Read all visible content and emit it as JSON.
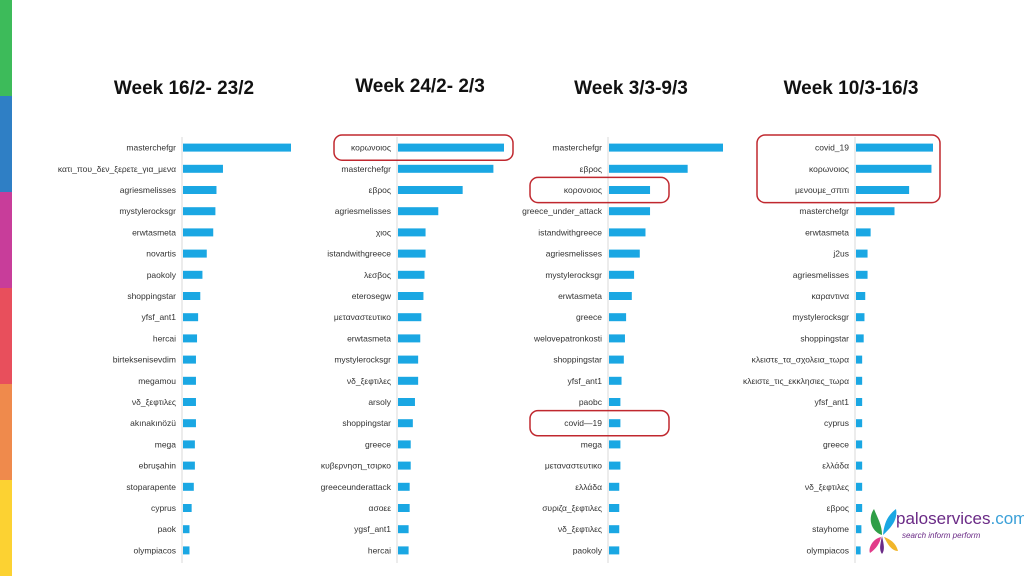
{
  "side_stripe_colors": [
    "#3dbb5a",
    "#2f7fc5",
    "#c83d9a",
    "#e84f5c",
    "#ef8a4c",
    "#fcd232"
  ],
  "bar_color": "#1aa7e3",
  "highlight_color": "#c0282f",
  "logo": {
    "name": "paloservices",
    "tld": ".com",
    "tagline": "search inform perform"
  },
  "chart_data": [
    {
      "type": "bar",
      "orientation": "horizontal",
      "title": "Week 16/2- 23/2",
      "categories": [
        "masterchefgr",
        "κατι_που_δεν_ξερετε_για_μενα",
        "agriesmelisses",
        "mystylerocksgr",
        "erwtasmeta",
        "novartis",
        "paokoly",
        "shoppingstar",
        "yfsf_ant1",
        "hercai",
        "birteksenisevdim",
        "megamou",
        "νδ_ξεφτιλες",
        "akınakınözü",
        "mega",
        "ebruşahin",
        "stoparapente",
        "cyprus",
        "paok",
        "olympiacos"
      ],
      "values": [
        100,
        37,
        31,
        30,
        28,
        22,
        18,
        16,
        14,
        13,
        12,
        12,
        12,
        12,
        11,
        11,
        10,
        8,
        6,
        6
      ],
      "highlighted": []
    },
    {
      "type": "bar",
      "orientation": "horizontal",
      "title": "Week 24/2- 2/3",
      "categories": [
        "κορωνοιος",
        "masterchefgr",
        "εβρος",
        "agriesmelisses",
        "χιος",
        "istandwithgreece",
        "λεσβος",
        "eterosegw",
        "μεταναστευτικο",
        "erwtasmeta",
        "mystylerocksgr",
        "νδ_ξεφτιλες",
        "arsoly",
        "shoppingstar",
        "greece",
        "κυβερνηση_τσιρκο",
        "greeceunderattack",
        "ασοεε",
        "ygsf_ant1",
        "hercai"
      ],
      "values": [
        100,
        90,
        61,
        38,
        26,
        26,
        25,
        24,
        22,
        21,
        19,
        19,
        16,
        14,
        12,
        12,
        11,
        11,
        10,
        10
      ],
      "highlighted": [
        "κορωνοιος"
      ]
    },
    {
      "type": "bar",
      "orientation": "horizontal",
      "title": "Week 3/3-9/3",
      "categories": [
        "masterchefgr",
        "εβρος",
        "κορονοιος",
        "greece_under_attack",
        "istandwithgreece",
        "agriesmelisses",
        "mystylerocksgr",
        "erwtasmeta",
        "greece",
        "welovepatronkosti",
        "shoppingstar",
        "yfsf_ant1",
        "paobc",
        "covid—19",
        "mega",
        "μεταναστευτικο",
        "ελλάδα",
        "συριζα_ξεφτιλες",
        "νδ_ξεφτιλες",
        "paokoly"
      ],
      "values": [
        100,
        69,
        36,
        36,
        32,
        27,
        22,
        20,
        15,
        14,
        13,
        11,
        10,
        10,
        10,
        10,
        9,
        9,
        9,
        9
      ],
      "highlighted": [
        "κορονοιος",
        "covid—19"
      ]
    },
    {
      "type": "bar",
      "orientation": "horizontal",
      "title": "Week 10/3-16/3",
      "categories": [
        "covid_19",
        "κορωνοιος",
        "μενουμε_σπιτι",
        "masterchefgr",
        "erwtasmeta",
        "j2us",
        "agriesmelisses",
        "καραντινα",
        "mystylerocksgr",
        "shoppingstar",
        "κλειστε_τα_σχολεια_τωρα",
        "κλειστε_τις_εκκλησιες_τωρα",
        "yfsf_ant1",
        "cyprus",
        "greece",
        "ελλάδα",
        "νδ_ξεφτιλες",
        "εβρος",
        "stayhome",
        "olympiacos"
      ],
      "values": [
        100,
        98,
        69,
        50,
        19,
        15,
        15,
        12,
        11,
        10,
        8,
        8,
        8,
        8,
        8,
        8,
        8,
        8,
        7,
        6
      ],
      "highlighted": [
        "covid_19",
        "κορωνοιος",
        "μενουμε_σπιτι"
      ]
    }
  ]
}
